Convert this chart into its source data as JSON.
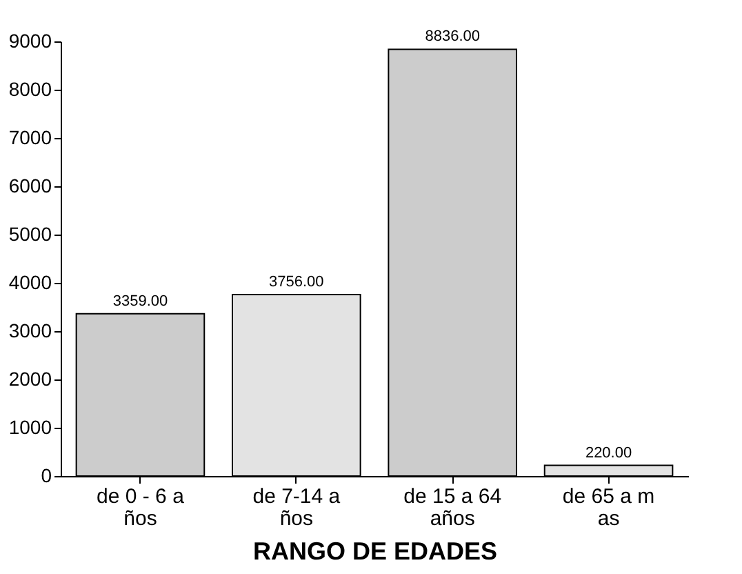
{
  "chart_data": {
    "type": "bar",
    "xlabel": "RANGO DE EDADES",
    "categories": [
      "de 0 - 6 a\nños",
      "de 7-14 a\nños",
      "de 15 a 64\naños",
      "de 65 a m\nas"
    ],
    "values": [
      3359,
      3756,
      8836,
      220
    ],
    "value_labels": [
      "3359.00",
      "3756.00",
      "8836.00",
      "220.00"
    ],
    "colors": [
      "#cccccc",
      "#e3e3e3",
      "#cccccc",
      "#e3e3e3"
    ],
    "ylim": [
      0,
      9000
    ],
    "yticks": [
      0,
      1000,
      2000,
      3000,
      4000,
      5000,
      6000,
      7000,
      8000,
      9000
    ],
    "grid": false
  }
}
